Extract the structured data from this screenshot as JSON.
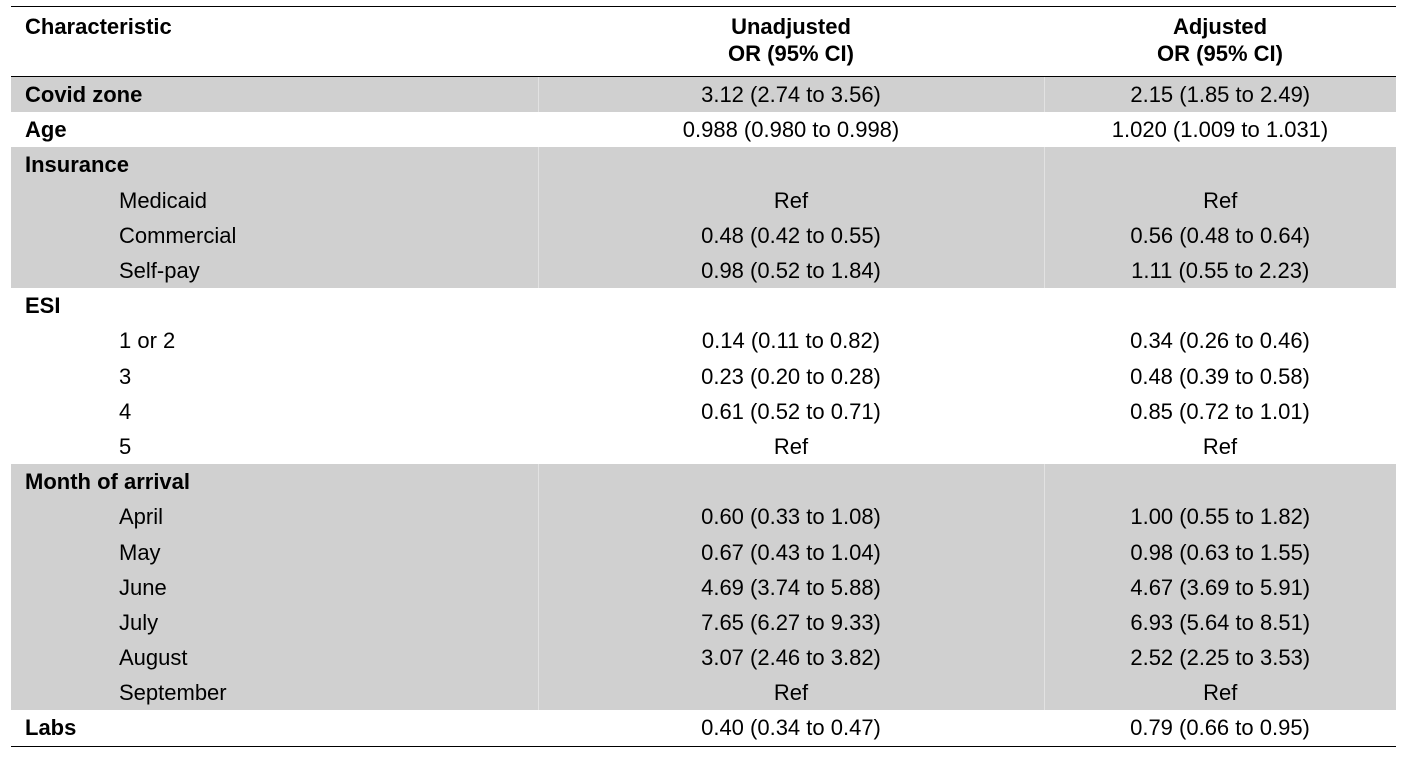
{
  "table": {
    "headers": [
      [
        "Characteristic"
      ],
      [
        "Unadjusted",
        "OR (95% CI)"
      ],
      [
        "Adjusted",
        "OR (95% CI)"
      ]
    ],
    "rows": [
      {
        "label": "Covid zone",
        "unadjusted": "3.12 (2.74 to 3.56)",
        "adjusted": "2.15 (1.85 to 2.49)",
        "level": "head",
        "shaded": true
      },
      {
        "label": "Age",
        "unadjusted": "0.988 (0.980 to 0.998)",
        "adjusted": "1.020 (1.009 to 1.031)",
        "level": "head",
        "shaded": false
      },
      {
        "label": "Insurance",
        "unadjusted": "",
        "adjusted": "",
        "level": "head",
        "shaded": true
      },
      {
        "label": "Medicaid",
        "unadjusted": "Ref",
        "adjusted": "Ref",
        "level": "sub",
        "shaded": true
      },
      {
        "label": "Commercial",
        "unadjusted": "0.48 (0.42 to 0.55)",
        "adjusted": "0.56 (0.48 to 0.64)",
        "level": "sub",
        "shaded": true
      },
      {
        "label": "Self-pay",
        "unadjusted": "0.98 (0.52 to 1.84)",
        "adjusted": "1.11 (0.55 to 2.23)",
        "level": "sub",
        "shaded": true
      },
      {
        "label": "ESI",
        "unadjusted": "",
        "adjusted": "",
        "level": "head",
        "shaded": false
      },
      {
        "label": "1 or 2",
        "unadjusted": "0.14 (0.11 to 0.82)",
        "adjusted": "0.34 (0.26 to 0.46)",
        "level": "sub",
        "shaded": false
      },
      {
        "label": "3",
        "unadjusted": "0.23 (0.20 to 0.28)",
        "adjusted": "0.48 (0.39 to 0.58)",
        "level": "sub",
        "shaded": false
      },
      {
        "label": "4",
        "unadjusted": "0.61 (0.52 to 0.71)",
        "adjusted": "0.85 (0.72 to 1.01)",
        "level": "sub",
        "shaded": false
      },
      {
        "label": "5",
        "unadjusted": "Ref",
        "adjusted": "Ref",
        "level": "sub",
        "shaded": false
      },
      {
        "label": "Month of arrival",
        "unadjusted": "",
        "adjusted": "",
        "level": "head",
        "shaded": true
      },
      {
        "label": "April",
        "unadjusted": "0.60 (0.33 to 1.08)",
        "adjusted": "1.00 (0.55 to 1.82)",
        "level": "sub",
        "shaded": true
      },
      {
        "label": "May",
        "unadjusted": "0.67 (0.43 to 1.04)",
        "adjusted": "0.98 (0.63 to 1.55)",
        "level": "sub",
        "shaded": true
      },
      {
        "label": "June",
        "unadjusted": "4.69 (3.74 to 5.88)",
        "adjusted": "4.67 (3.69 to 5.91)",
        "level": "sub",
        "shaded": true
      },
      {
        "label": "July",
        "unadjusted": "7.65 (6.27 to 9.33)",
        "adjusted": "6.93 (5.64 to 8.51)",
        "level": "sub",
        "shaded": true
      },
      {
        "label": "August",
        "unadjusted": "3.07 (2.46 to 3.82)",
        "adjusted": "2.52 (2.25 to 3.53)",
        "level": "sub",
        "shaded": true
      },
      {
        "label": "September",
        "unadjusted": "Ref",
        "adjusted": "Ref",
        "level": "sub",
        "shaded": true
      },
      {
        "label": "Labs",
        "unadjusted": "0.40 (0.34 to 0.47)",
        "adjusted": "0.79 (0.66 to 0.95)",
        "level": "head",
        "shaded": false
      }
    ]
  },
  "colors": {
    "shaded_row": "#d0d0d0",
    "rule": "#000000",
    "text": "#000000"
  }
}
